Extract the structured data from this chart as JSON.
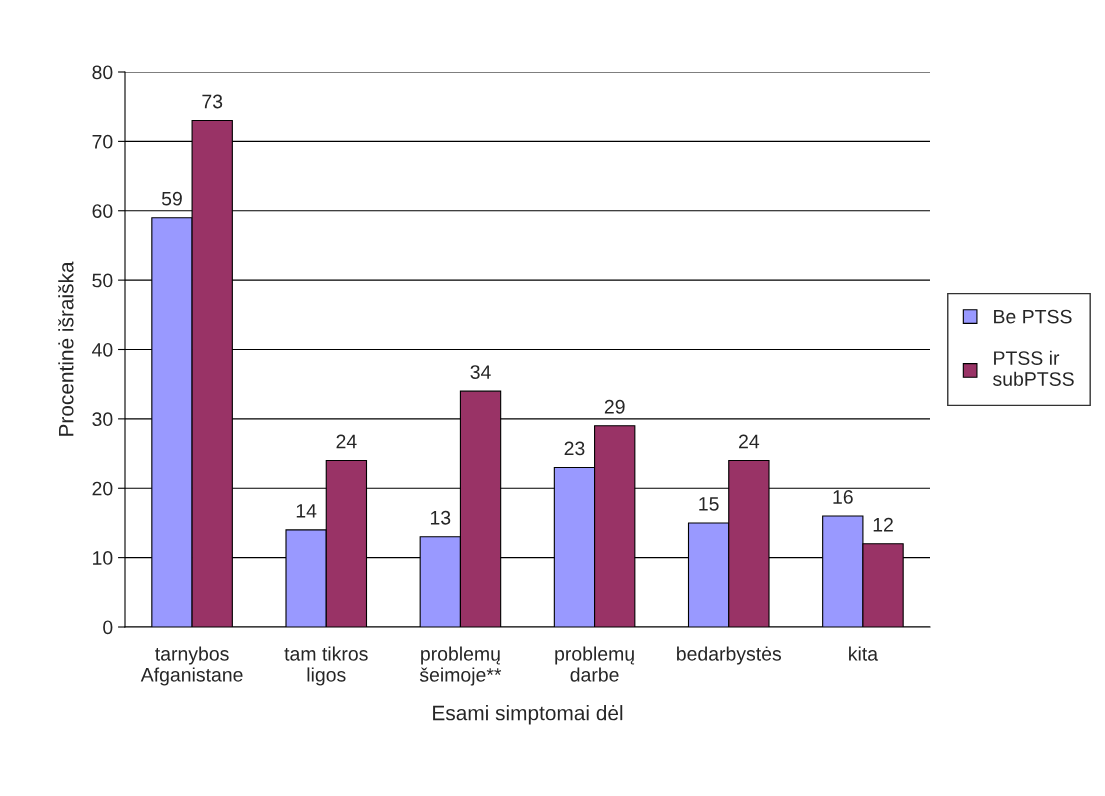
{
  "chart_data": {
    "type": "bar",
    "categories": [
      "tarnybos\nAfganistane",
      "tam tikros\nligos",
      "problemų\nšeimoje**",
      "problemų\ndarbe",
      "bedarbystės",
      "kita"
    ],
    "series": [
      {
        "name": "Be PTSS",
        "color": "#9999ff",
        "values": [
          59,
          14,
          13,
          23,
          15,
          16
        ]
      },
      {
        "name": "PTSS ir\nsubPTSS",
        "color": "#993366",
        "values": [
          73,
          24,
          34,
          29,
          24,
          12
        ]
      }
    ],
    "xlabel": "Esami simptomai dėl",
    "ylabel": "Procentinė išraiška",
    "ylim": [
      0,
      80
    ],
    "yticks": [
      0,
      10,
      20,
      30,
      40,
      50,
      60,
      70,
      80
    ],
    "grid": "y",
    "legend": "right",
    "data_labels": true
  }
}
